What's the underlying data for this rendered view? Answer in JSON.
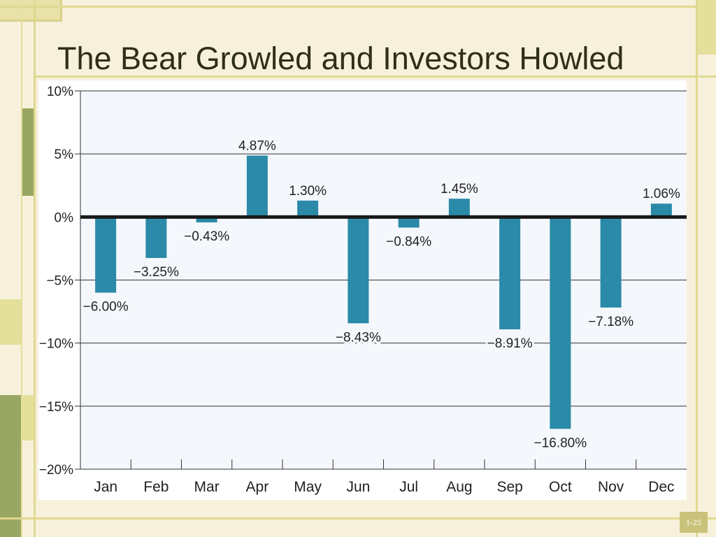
{
  "slide": {
    "title": "The Bear Growled and Investors Howled",
    "page_number": "1-25"
  },
  "colors": {
    "background": "#f7f1dc",
    "bar": "#2a8aa8",
    "zero_line": "#1a1a1a",
    "grid": "#333333",
    "deco_dark": "#98a862",
    "deco_light": "#e4df9a"
  },
  "chart_data": {
    "type": "bar",
    "title": "",
    "xlabel": "",
    "ylabel": "",
    "categories": [
      "Jan",
      "Feb",
      "Mar",
      "Apr",
      "May",
      "Jun",
      "Jul",
      "Aug",
      "Sep",
      "Oct",
      "Nov",
      "Dec"
    ],
    "values": [
      -6.0,
      -3.25,
      -0.43,
      4.87,
      1.3,
      -8.43,
      -0.84,
      1.45,
      -8.91,
      -16.8,
      -7.18,
      1.06
    ],
    "data_labels": [
      "−6.00%",
      "−3.25%",
      "−0.43%",
      "4.87%",
      "1.30%",
      "−8.43%",
      "−0.84%",
      "1.45%",
      "−8.91%",
      "−16.80%",
      "−7.18%",
      "1.06%"
    ],
    "ylim": [
      -20,
      10
    ],
    "yticks": [
      10,
      5,
      0,
      -5,
      -10,
      -15,
      -20
    ],
    "ytick_labels": [
      "10%",
      "5%",
      "0%",
      "−5%",
      "−10%",
      "−15%",
      "−20%"
    ],
    "grid": true,
    "legend": "none"
  }
}
